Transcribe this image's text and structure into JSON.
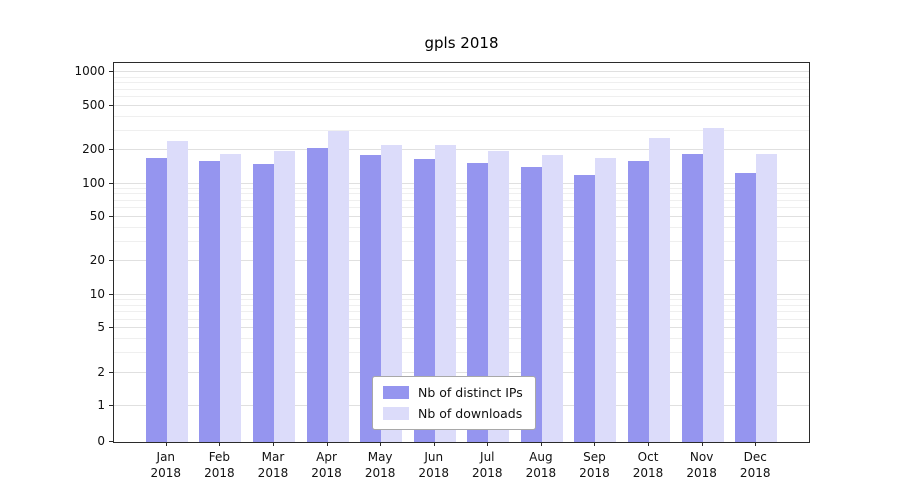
{
  "chart_data": {
    "type": "bar",
    "title": "gpls 2018",
    "categories": [
      "Jan 2018",
      "Feb 2018",
      "Mar 2018",
      "Apr 2018",
      "May 2018",
      "Jun 2018",
      "Jul 2018",
      "Aug 2018",
      "Sep 2018",
      "Oct 2018",
      "Nov 2018",
      "Dec 2018"
    ],
    "series": [
      {
        "name": "Nb of distinct IPs",
        "color": "#9595ef",
        "values": [
          170,
          160,
          150,
          210,
          180,
          165,
          155,
          140,
          120,
          160,
          185,
          125
        ]
      },
      {
        "name": "Nb of downloads",
        "color": "#dcdcfa",
        "values": [
          240,
          185,
          195,
          300,
          225,
          225,
          195,
          180,
          170,
          255,
          320,
          185
        ]
      }
    ],
    "yscale": "symlog",
    "y_ticks": [
      0,
      1,
      2,
      5,
      10,
      20,
      50,
      100,
      200,
      500,
      1000
    ],
    "ylim": [
      0,
      1000
    ],
    "grid": "horizontal",
    "legend_position": "bottom-center-inside"
  }
}
